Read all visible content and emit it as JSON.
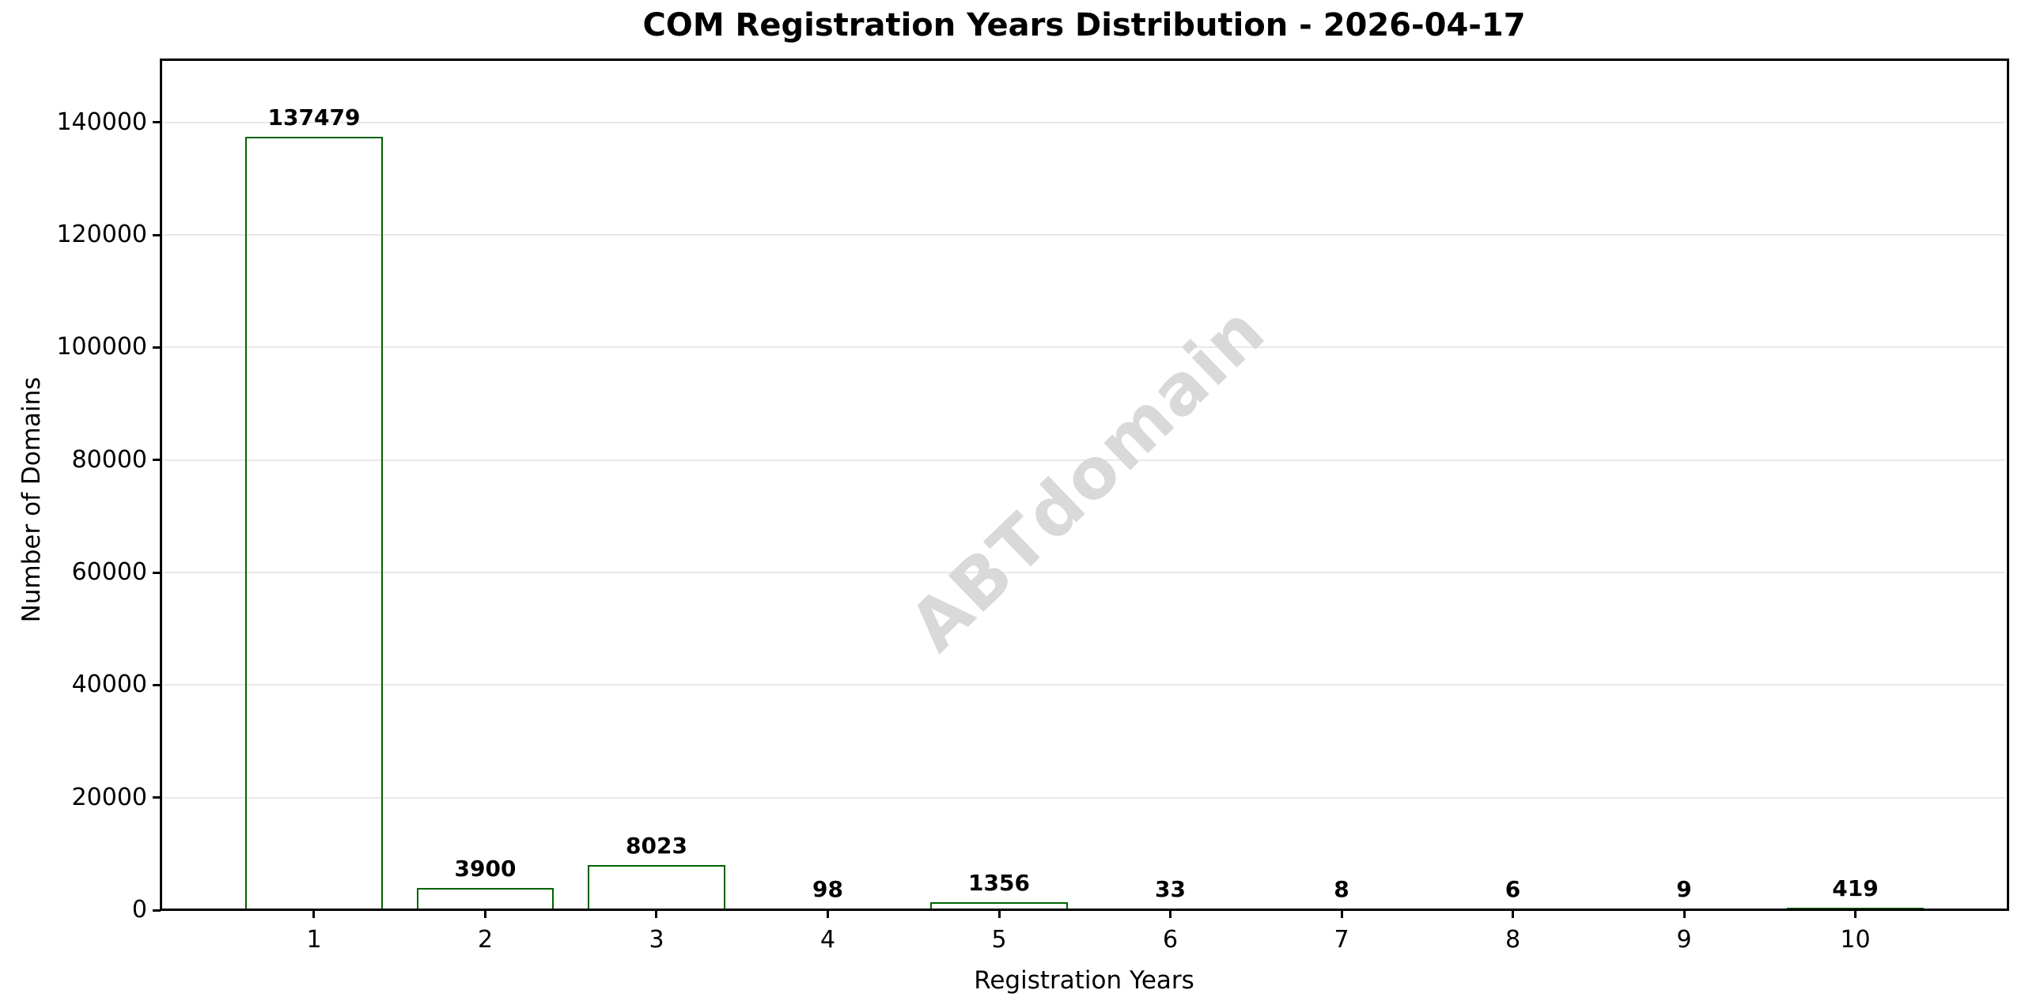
{
  "chart_data": {
    "type": "bar",
    "title": "COM Registration Years Distribution - 2026-04-17",
    "xlabel": "Registration Years",
    "ylabel": "Number of Domains",
    "categories": [
      1,
      2,
      3,
      4,
      5,
      6,
      7,
      8,
      9,
      10
    ],
    "values": [
      137479,
      3900,
      8023,
      98,
      1356,
      33,
      8,
      6,
      9,
      419
    ],
    "bar_value_labels": [
      "137479",
      "3900",
      "8023",
      "98",
      "1356",
      "33",
      "8",
      "6",
      "9",
      "419"
    ],
    "yticks": [
      0,
      20000,
      40000,
      60000,
      80000,
      100000,
      120000,
      140000
    ],
    "ytick_labels": [
      "0",
      "20000",
      "40000",
      "60000",
      "80000",
      "100000",
      "120000",
      "140000"
    ],
    "xtick_labels": [
      "1",
      "2",
      "3",
      "4",
      "5",
      "6",
      "7",
      "8",
      "9",
      "10"
    ],
    "ylim": [
      0,
      151227
    ],
    "xlim": [
      0.104,
      10.889
    ],
    "bar_width_ratio": 0.8,
    "grid": "horizontal",
    "legend_position": "none",
    "watermark": "ABTdomain",
    "colors": {
      "bar_fill": "#008000",
      "bar_fill_alpha": 0.7,
      "bar_edge": "#006400",
      "grid_color": "#e8e8e8",
      "watermark_color": "#d9d9d9",
      "text_color": "#000000",
      "background": "#ffffff"
    }
  }
}
